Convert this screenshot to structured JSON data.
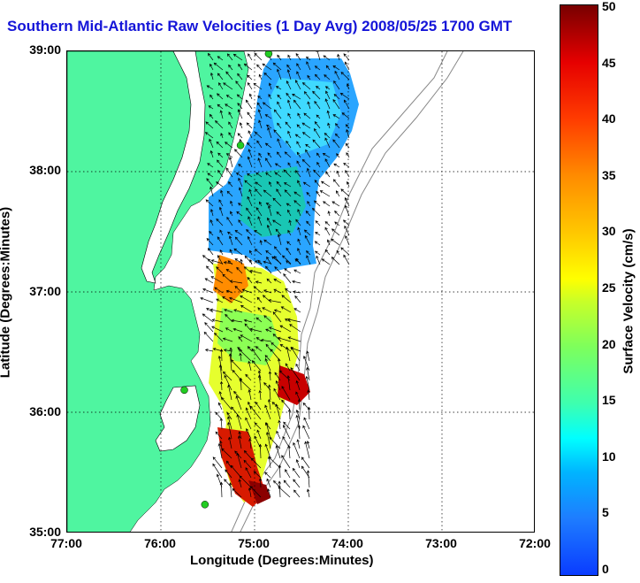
{
  "title": "Southern Mid-Atlantic Raw Velocities (1 Day Avg) 2008/05/25 1700 GMT",
  "axes": {
    "xlabel": "Longitude (Degrees:Minutes)",
    "ylabel": "Latitude (Degrees:Minutes)",
    "x_ticks": [
      "77:00",
      "76:00",
      "75:00",
      "74:00",
      "73:00",
      "72:00"
    ],
    "y_ticks": [
      "39:00",
      "38:00",
      "37:00",
      "36:00",
      "35:00"
    ]
  },
  "colorbar": {
    "label": "Surface Velocity (cm/s)",
    "ticks": [
      "50",
      "45",
      "40",
      "35",
      "30",
      "25",
      "20",
      "15",
      "10",
      "5",
      "0"
    ],
    "range": [
      0,
      50
    ]
  },
  "colors": {
    "land": "#4ff5a0",
    "title": "#1515d8",
    "station": "#22cc22"
  },
  "map": {
    "extent_lon": [
      -77,
      -72
    ],
    "extent_lat": [
      35,
      39
    ],
    "stations": [
      {
        "lon": -74.85,
        "lat": 38.98
      },
      {
        "lon": -75.15,
        "lat": 38.22
      },
      {
        "lon": -75.75,
        "lat": 36.19
      },
      {
        "lon": -75.53,
        "lat": 35.24
      }
    ]
  }
}
